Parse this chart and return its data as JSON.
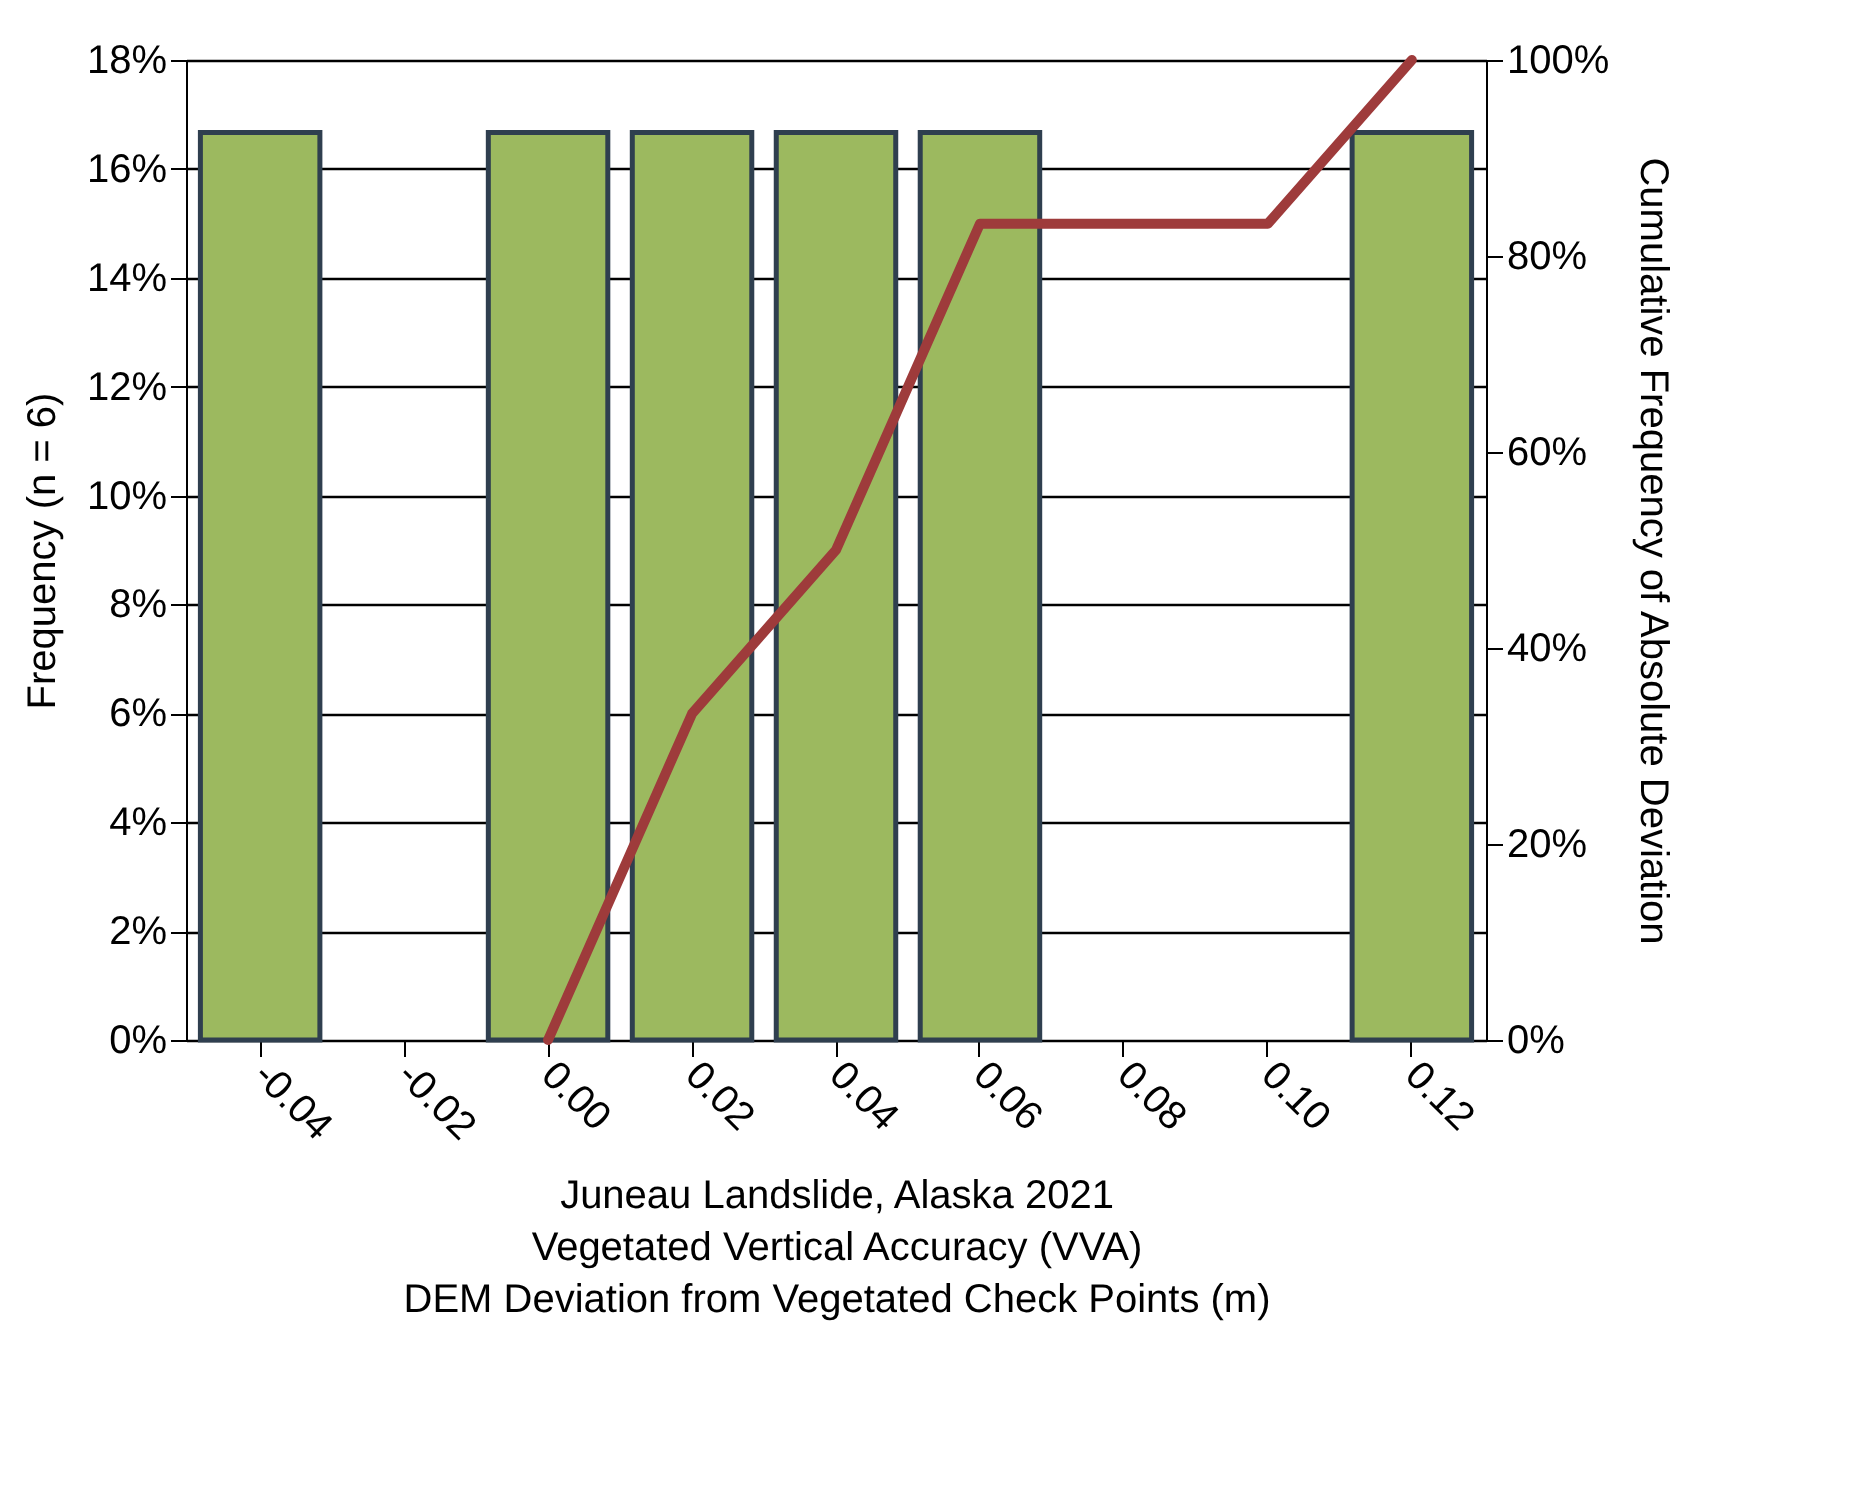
{
  "chart_data": {
    "type": "bar",
    "xlabel": "Juneau Landslide, Alaska 2021\nVegetated Vertical Accuracy (VVA)\nDEM Deviation from Vegetated Check Points (m)",
    "ylabel": "Frequency (n = 6)",
    "y2label": "Cumulative Frequency of Absolute Deviation",
    "categories": [
      "-0.04",
      "-0.02",
      "0.00",
      "0.02",
      "0.04",
      "0.06",
      "0.08",
      "0.10",
      "0.12"
    ],
    "series": [
      {
        "color": "#9cb95f",
        "values": [
          16.67,
          0,
          16.67,
          16.67,
          16.67,
          16.67,
          0,
          0,
          16.67
        ]
      },
      {
        "type": "line",
        "axis": "y2",
        "color": "#9e3b3b",
        "values": [
          null,
          null,
          0,
          33.3,
          50,
          83.3,
          83.3,
          83.3,
          100
        ]
      }
    ],
    "ylim": [
      0,
      18
    ],
    "yticks": [
      {
        "value": 0,
        "label": "0%"
      },
      {
        "value": 2,
        "label": "2%"
      },
      {
        "value": 4,
        "label": "4%"
      },
      {
        "value": 6,
        "label": "6%"
      },
      {
        "value": 8,
        "label": "8%"
      },
      {
        "value": 10,
        "label": "10%"
      },
      {
        "value": 12,
        "label": "12%"
      },
      {
        "value": 14,
        "label": "14%"
      },
      {
        "value": 16,
        "label": "16%"
      },
      {
        "value": 18,
        "label": "18%"
      }
    ],
    "y2lim": [
      0,
      100
    ],
    "y2ticks": [
      {
        "value": 0,
        "label": "0%"
      },
      {
        "value": 20,
        "label": "20%"
      },
      {
        "value": 40,
        "label": "40%"
      },
      {
        "value": 60,
        "label": "60%"
      },
      {
        "value": 80,
        "label": "80%"
      },
      {
        "value": 100,
        "label": "100%"
      }
    ],
    "grid": "y",
    "line_style": "solid",
    "marker": "none"
  }
}
